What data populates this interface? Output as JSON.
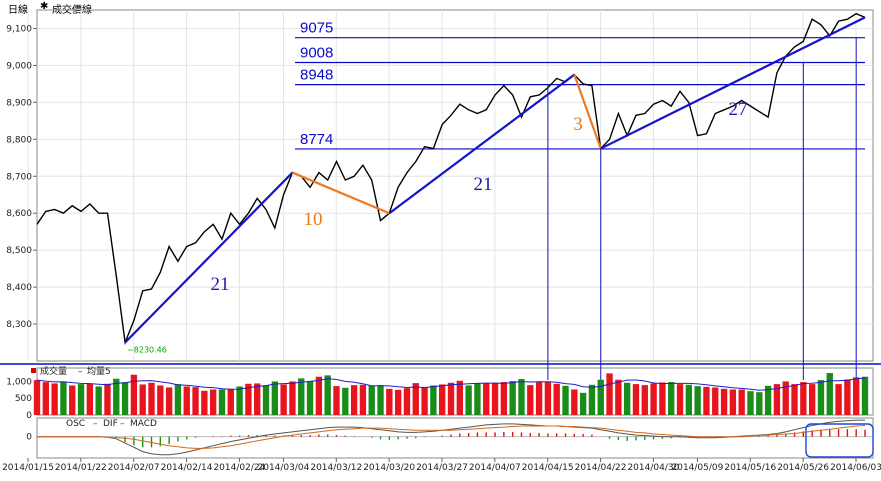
{
  "header": {
    "period": "日線",
    "legend_marker": "✱",
    "legend_label": "成交價線"
  },
  "chart_data": [
    {
      "type": "line",
      "panel": "price",
      "ylim": [
        8200,
        9150
      ],
      "yticks": [
        8300,
        8400,
        8500,
        8600,
        8700,
        8800,
        8900,
        9000,
        9100
      ],
      "ytick_labels": [
        "8,300",
        "8,400",
        "8,500",
        "8,600",
        "8,700",
        "8,800",
        "8,900",
        "9,000",
        "9,100"
      ],
      "grid": true,
      "low_annotation": "8230.46",
      "close": [
        8570,
        8605,
        8610,
        8600,
        8620,
        8605,
        8625,
        8600,
        8600,
        8430,
        8250,
        8310,
        8390,
        8395,
        8440,
        8510,
        8470,
        8510,
        8520,
        8550,
        8570,
        8530,
        8600,
        8570,
        8600,
        8640,
        8610,
        8560,
        8650,
        8710,
        8700,
        8670,
        8710,
        8690,
        8740,
        8690,
        8700,
        8730,
        8690,
        8580,
        8600,
        8670,
        8710,
        8740,
        8780,
        8775,
        8840,
        8865,
        8895,
        8880,
        8870,
        8880,
        8920,
        8945,
        8920,
        8860,
        8915,
        8920,
        8940,
        8965,
        8955,
        8975,
        8950,
        8945,
        8775,
        8800,
        8870,
        8810,
        8865,
        8870,
        8895,
        8905,
        8890,
        8930,
        8900,
        8810,
        8815,
        8870,
        8880,
        8890,
        8905,
        8890,
        8875,
        8860,
        8980,
        9025,
        9050,
        9065,
        9125,
        9110,
        9080,
        9120,
        9125,
        9140,
        9130
      ],
      "price_levels": [
        {
          "label": "9075",
          "value": 9075
        },
        {
          "label": "9008",
          "value": 9008
        },
        {
          "label": "8948",
          "value": 8948
        },
        {
          "label": "8774",
          "value": 8774
        }
      ],
      "count_labels": [
        {
          "text": "21",
          "color": "#1a1aa8"
        },
        {
          "text": "10",
          "color": "#ee7711"
        },
        {
          "text": "21",
          "color": "#1a1aa8"
        },
        {
          "text": "3",
          "color": "#ee7711"
        },
        {
          "text": "27",
          "color": "#1a1aa8"
        }
      ],
      "colors": {
        "price": "#000000",
        "up_trend": "#1414c8",
        "down_trend": "#f07820",
        "level_line": "#0a0acc",
        "low_annotation": "#00aa00"
      }
    },
    {
      "type": "bar",
      "panel": "volume",
      "legend": [
        {
          "label": "成交量",
          "color": "#dd0000"
        },
        {
          "label": "均量5",
          "color": "#0000cc"
        }
      ],
      "ylim": [
        0,
        1400
      ],
      "yticks": [
        0,
        500,
        1000
      ],
      "ytick_labels": [
        "0",
        "500",
        "1,000"
      ],
      "volume": [
        1040,
        980,
        940,
        990,
        880,
        920,
        940,
        850,
        930,
        1080,
        980,
        1200,
        910,
        960,
        880,
        820,
        920,
        850,
        830,
        720,
        760,
        760,
        770,
        850,
        930,
        940,
        890,
        1000,
        910,
        1000,
        1090,
        1010,
        1140,
        1180,
        860,
        810,
        890,
        900,
        880,
        890,
        780,
        750,
        800,
        950,
        820,
        880,
        910,
        960,
        1020,
        880,
        940,
        950,
        960,
        980,
        1010,
        1070,
        890,
        1000,
        990,
        930,
        870,
        760,
        660,
        900,
        1050,
        1240,
        1050,
        960,
        920,
        890,
        940,
        970,
        980,
        920,
        900,
        860,
        840,
        820,
        780,
        760,
        760,
        710,
        680,
        870,
        920,
        1000,
        920,
        980,
        920,
        1040,
        1250,
        920,
        1060,
        1120,
        1140
      ],
      "colors": {
        "up": "#e8141e",
        "down": "#1a8c1a",
        "avg": "#1e1ec8"
      }
    },
    {
      "type": "bar",
      "panel": "macd",
      "legend": [
        "OSC",
        "DIF",
        "MACD"
      ],
      "ylim": [
        -40,
        35
      ],
      "yticks": [
        0
      ],
      "ytick_labels": [
        "0"
      ],
      "x_tick_labels": [
        "2014/01/15",
        "2014/01/22",
        "2014/02/07",
        "2014/02/14",
        "2014/02/24",
        "2014/03/04",
        "2014/03/12",
        "2014/03/20",
        "2014/03/27",
        "2014/04/07",
        "2014/04/15",
        "2014/04/22",
        "2014/04/30",
        "2014/05/09",
        "2014/05/16",
        "2014/05/26",
        "2014/06/03"
      ],
      "osc": [
        0,
        0,
        0,
        0,
        0,
        0,
        0,
        0,
        0,
        -2,
        -10,
        -16,
        -20,
        -20,
        -18,
        -14,
        -9,
        -5,
        -2,
        0,
        1,
        1,
        2,
        2,
        3,
        3,
        3,
        2,
        2,
        3,
        3,
        3,
        4,
        4,
        3,
        2,
        1,
        0,
        -2,
        -5,
        -6,
        -5,
        -4,
        -3,
        -1,
        0,
        2,
        4,
        6,
        7,
        8,
        8,
        8,
        9,
        9,
        8,
        7,
        7,
        6,
        6,
        6,
        5,
        5,
        4,
        0,
        -4,
        -6,
        -8,
        -7,
        -6,
        -5,
        -4,
        -3,
        -2,
        -2,
        -3,
        -3,
        -2,
        -2,
        -1,
        0,
        0,
        1,
        2,
        4,
        6,
        8,
        10,
        12,
        13,
        14,
        14,
        14,
        14,
        13
      ],
      "dif": [
        0,
        0,
        0,
        0,
        0,
        0,
        0,
        0,
        -1,
        -4,
        -12,
        -20,
        -28,
        -32,
        -34,
        -34,
        -32,
        -29,
        -25,
        -21,
        -17,
        -13,
        -9,
        -6,
        -3,
        0,
        3,
        5,
        7,
        9,
        11,
        13,
        15,
        17,
        18,
        18,
        18,
        17,
        15,
        13,
        11,
        9,
        8,
        8,
        9,
        10,
        12,
        14,
        16,
        18,
        20,
        22,
        23,
        24,
        24,
        23,
        22,
        21,
        20,
        20,
        19,
        18,
        17,
        16,
        13,
        10,
        7,
        5,
        3,
        2,
        1,
        0,
        0,
        0,
        -1,
        -2,
        -2,
        -2,
        -1,
        0,
        1,
        2,
        3,
        4,
        6,
        9,
        13,
        17,
        21,
        24,
        27,
        29,
        30,
        31,
        31
      ],
      "macd": [
        0,
        0,
        0,
        0,
        0,
        0,
        0,
        0,
        -1,
        -2,
        -3,
        -5,
        -8,
        -11,
        -14,
        -17,
        -19,
        -21,
        -22,
        -22,
        -21,
        -19,
        -17,
        -14,
        -11,
        -8,
        -5,
        -2,
        1,
        3,
        5,
        7,
        9,
        11,
        13,
        14,
        15,
        16,
        16,
        16,
        15,
        14,
        13,
        12,
        12,
        12,
        12,
        12,
        13,
        14,
        15,
        16,
        17,
        18,
        19,
        20,
        20,
        20,
        20,
        20,
        19,
        19,
        18,
        17,
        16,
        14,
        12,
        10,
        8,
        7,
        5,
        4,
        3,
        2,
        1,
        0,
        0,
        0,
        0,
        0,
        0,
        1,
        2,
        3,
        4,
        5,
        6,
        8,
        10,
        12,
        14,
        16,
        18,
        20,
        21
      ],
      "colors": {
        "osc_pos": "#dd1111",
        "osc_neg": "#119911",
        "dif": "#555555",
        "macd": "#d2691e"
      }
    }
  ]
}
